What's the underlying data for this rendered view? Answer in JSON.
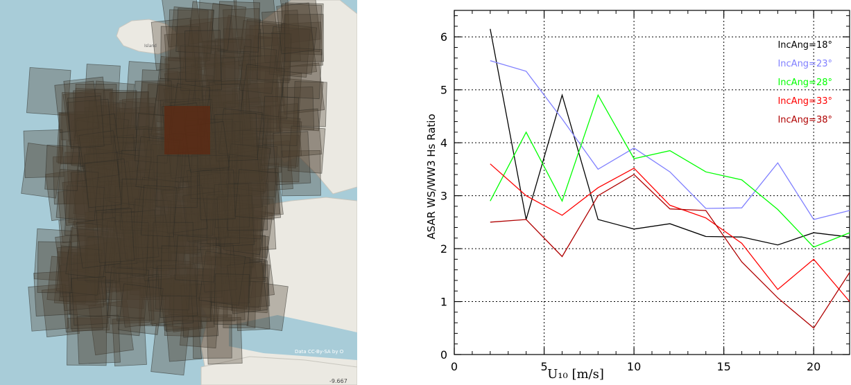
{
  "map": {
    "place_label": "Island",
    "attribution": "Data CC-By-SA by O",
    "coordinate": "-9.667",
    "colors": {
      "sea": "#a8ccd8",
      "land": "#ebe9e2",
      "footprint_fill": "#4a3e2f",
      "footprint_stroke": "#2a2a24",
      "highlight_fill": "#5a2a14"
    }
  },
  "chart_data": {
    "type": "line",
    "xlabel": "U₁₀ [m/s]",
    "ylabel": "ASAR WS/WW3 Hs Ratio",
    "xlim": [
      0,
      22
    ],
    "ylim": [
      0,
      6.5
    ],
    "xticks": [
      "0",
      "5",
      "10",
      "15",
      "20"
    ],
    "yticks": [
      "0",
      "1",
      "2",
      "3",
      "4",
      "5",
      "6"
    ],
    "grid": true,
    "legend_position": "top-right",
    "x": [
      2,
      4,
      6,
      8,
      10,
      12,
      14,
      16,
      18,
      20,
      22
    ],
    "series": [
      {
        "name": "IncAng=18°",
        "color": "#000000",
        "values": [
          6.15,
          2.55,
          4.9,
          2.55,
          2.37,
          2.47,
          2.23,
          2.22,
          2.07,
          2.3,
          2.22
        ]
      },
      {
        "name": "IncAng=23°",
        "color": "#7f7fff",
        "values": [
          5.55,
          5.35,
          4.45,
          3.5,
          3.9,
          3.45,
          2.76,
          2.77,
          3.62,
          2.55,
          2.72
        ]
      },
      {
        "name": "IncAng=28°",
        "color": "#00ff00",
        "values": [
          2.9,
          4.2,
          2.9,
          4.9,
          3.7,
          3.85,
          3.45,
          3.3,
          2.74,
          2.03,
          2.3
        ]
      },
      {
        "name": "IncAng=33°",
        "color": "#ff0000",
        "values": [
          3.6,
          3.0,
          2.63,
          3.15,
          3.52,
          2.82,
          2.58,
          2.1,
          1.23,
          1.8,
          1.0
        ]
      },
      {
        "name": "IncAng=38°",
        "color": "#b00000",
        "values": [
          2.5,
          2.55,
          1.85,
          3.0,
          3.4,
          2.75,
          2.72,
          1.75,
          1.07,
          0.5,
          1.55
        ]
      }
    ]
  }
}
